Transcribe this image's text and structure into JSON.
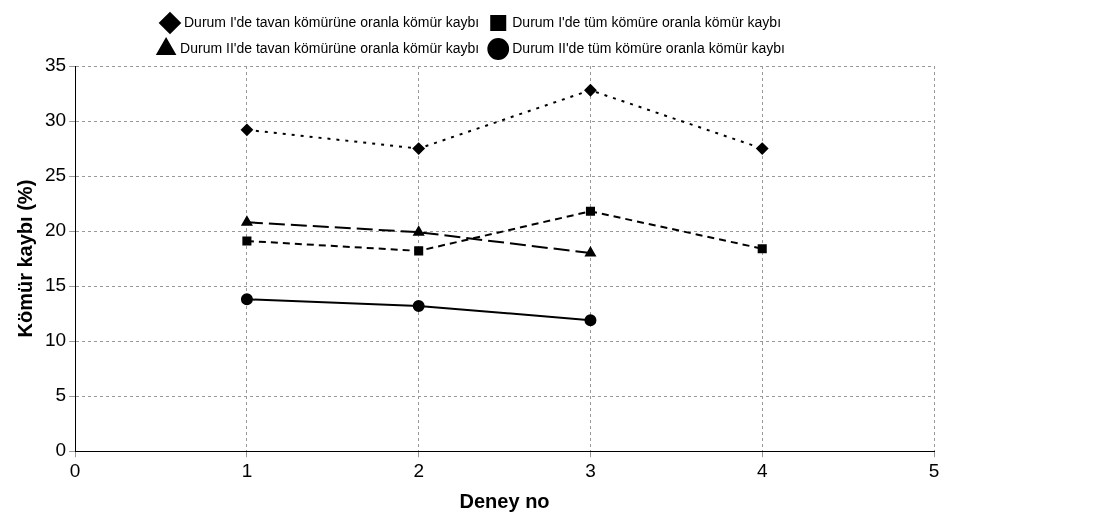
{
  "chart_data": {
    "type": "line",
    "xlabel": "Deney no",
    "ylabel": "Kömür kaybı (%)",
    "xlim": [
      0,
      5
    ],
    "xticks": [
      0,
      1,
      2,
      3,
      4,
      5
    ],
    "ylim": [
      0,
      35
    ],
    "yticks": [
      0,
      5,
      10,
      15,
      20,
      25,
      30,
      35
    ],
    "grid": true,
    "legend": "top",
    "series": [
      {
        "name": "Durum I'de tavan kömürüne oranla kömür kaybı",
        "color": "#000000",
        "marker": "diamond",
        "line_style": "dotted",
        "x": [
          1,
          2,
          3,
          4
        ],
        "values": [
          29.2,
          27.5,
          32.8,
          27.5
        ]
      },
      {
        "name": "Durum I'de tüm kömüre oranla kömür kaybı",
        "color": "#000000",
        "marker": "square",
        "line_style": "dashed",
        "x": [
          1,
          2,
          3,
          4
        ],
        "values": [
          19.1,
          18.2,
          21.8,
          18.4
        ]
      },
      {
        "name": "Durum II'de tavan kömürüne oranla kömür kaybı",
        "color": "#000000",
        "marker": "triangle",
        "line_style": "longdash",
        "x": [
          1,
          2,
          3
        ],
        "values": [
          20.8,
          19.9,
          18.0
        ]
      },
      {
        "name": "Durum II'de tüm kömüre oranla kömür kaybı",
        "color": "#000000",
        "marker": "circle",
        "line_style": "solid",
        "x": [
          1,
          2,
          3
        ],
        "values": [
          13.8,
          13.2,
          11.9
        ]
      }
    ]
  }
}
